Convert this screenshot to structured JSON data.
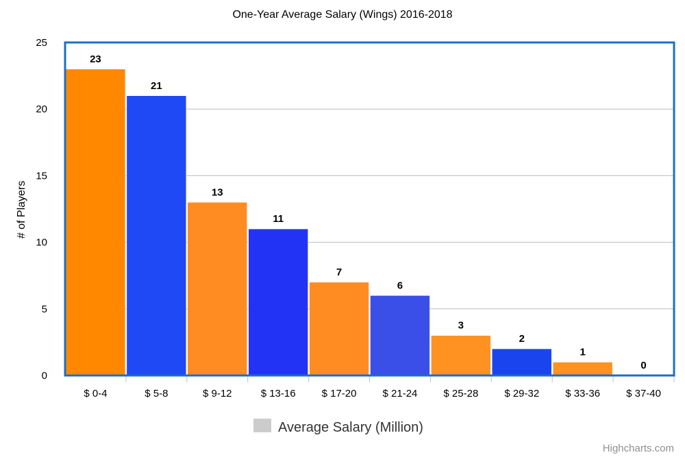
{
  "chart_data": {
    "type": "bar",
    "title": "One-Year Average Salary (Wings) 2016-2018",
    "xlabel": "",
    "ylabel": "# of Players",
    "categories": [
      "$ 0-4",
      "$ 5-8",
      "$ 9-12",
      "$ 13-16",
      "$ 17-20",
      "$ 21-24",
      "$ 25-28",
      "$ 29-32",
      "$ 33-36",
      "$ 37-40"
    ],
    "series": [
      {
        "name": "Average Salary (Million)",
        "values": [
          23,
          21,
          13,
          11,
          7,
          6,
          3,
          2,
          1,
          0
        ],
        "colors": [
          "#FF8800",
          "#1E49F5",
          "#FF8C22",
          "#2233F5",
          "#FF8C22",
          "#3A4FE8",
          "#FF9220",
          "#1A44EE",
          "#FF9220",
          "#1A44EE"
        ]
      }
    ],
    "ylim": [
      0,
      25
    ],
    "yticks": [
      0,
      5,
      10,
      15,
      20,
      25
    ],
    "grid": true,
    "legend_position": "bottom",
    "legend_color": "#cccccc",
    "frame_color": "#1a6fc4"
  },
  "credits": "Highcharts.com"
}
